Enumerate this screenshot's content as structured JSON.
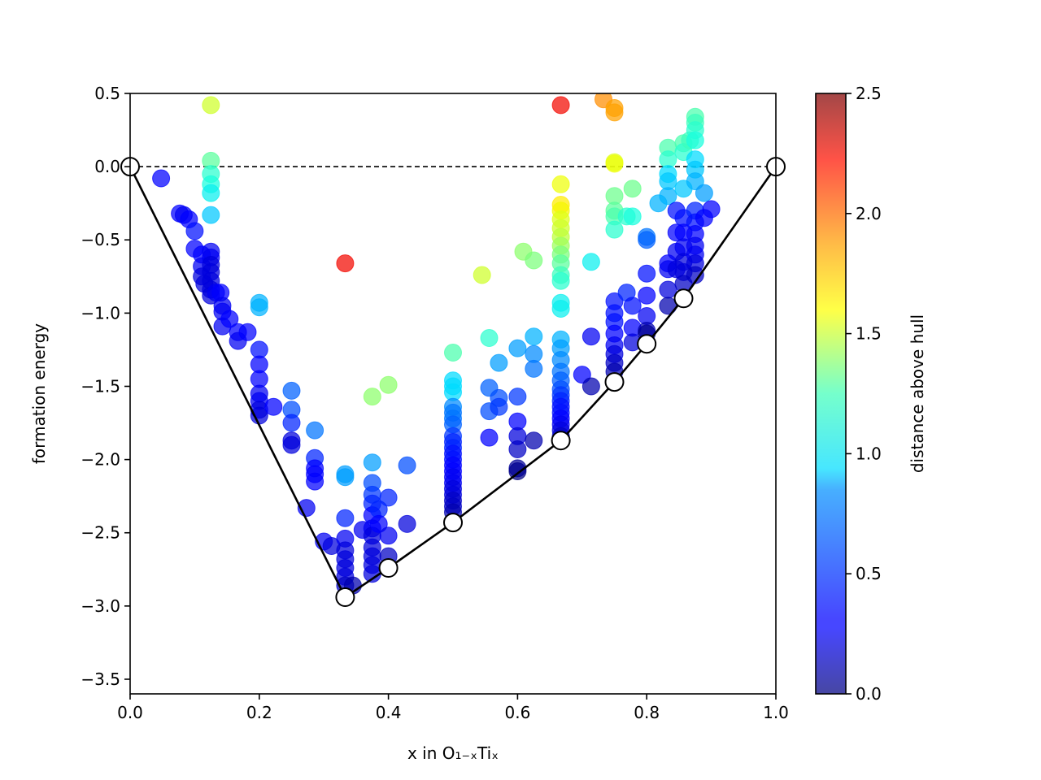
{
  "chart_data": {
    "type": "scatter",
    "xlabel": "x in O₁₋ₓTiₓ",
    "ylabel": "formation energy",
    "xlim": [
      0.0,
      1.0
    ],
    "ylim": [
      -3.6,
      0.5
    ],
    "xticks": [
      "0.0",
      "0.2",
      "0.4",
      "0.6",
      "0.8",
      "1.0"
    ],
    "yticks": [
      "0.5",
      "0.0",
      "−0.5",
      "−1.0",
      "−1.5",
      "−2.0",
      "−2.5",
      "−3.0",
      "−3.5"
    ],
    "colormap": "jet",
    "colorbar": {
      "label": "distance above hull",
      "range": [
        0.0,
        2.5
      ],
      "ticks": [
        "0.0",
        "0.5",
        "1.0",
        "1.5",
        "2.0",
        "2.5"
      ]
    },
    "reference_line": {
      "y": 0.0,
      "style": "dashed"
    },
    "hull": [
      [
        0.0,
        0.0
      ],
      [
        0.333,
        -2.94
      ],
      [
        0.4,
        -2.74
      ],
      [
        0.5,
        -2.43
      ],
      [
        0.667,
        -1.87
      ],
      [
        0.75,
        -1.47
      ],
      [
        0.8,
        -1.21
      ],
      [
        0.857,
        -0.9
      ],
      [
        1.0,
        0.0
      ]
    ],
    "points": [
      [
        0.048,
        -0.08,
        0.3
      ],
      [
        0.077,
        -0.32,
        0.3
      ],
      [
        0.083,
        -0.33,
        0.25
      ],
      [
        0.091,
        -0.36,
        0.3
      ],
      [
        0.1,
        -0.44,
        0.35
      ],
      [
        0.1,
        -0.56,
        0.3
      ],
      [
        0.111,
        -0.6,
        0.3
      ],
      [
        0.111,
        -0.68,
        0.25
      ],
      [
        0.111,
        -0.75,
        0.2
      ],
      [
        0.115,
        -0.8,
        0.2
      ],
      [
        0.125,
        0.42,
        1.5
      ],
      [
        0.125,
        0.04,
        1.15
      ],
      [
        0.125,
        -0.05,
        1.0
      ],
      [
        0.125,
        -0.12,
        0.95
      ],
      [
        0.125,
        -0.18,
        0.9
      ],
      [
        0.125,
        -0.33,
        0.8
      ],
      [
        0.125,
        -0.58,
        0.25
      ],
      [
        0.125,
        -0.62,
        0.25
      ],
      [
        0.125,
        -0.67,
        0.2
      ],
      [
        0.125,
        -0.72,
        0.2
      ],
      [
        0.125,
        -0.78,
        0.2
      ],
      [
        0.125,
        -0.84,
        0.2
      ],
      [
        0.125,
        -0.88,
        0.2
      ],
      [
        0.133,
        -0.86,
        0.25
      ],
      [
        0.14,
        -0.86,
        0.3
      ],
      [
        0.143,
        -0.95,
        0.25
      ],
      [
        0.143,
        -0.99,
        0.25
      ],
      [
        0.143,
        -1.09,
        0.25
      ],
      [
        0.154,
        -1.04,
        0.3
      ],
      [
        0.167,
        -1.13,
        0.3
      ],
      [
        0.167,
        -1.19,
        0.25
      ],
      [
        0.182,
        -1.13,
        0.3
      ],
      [
        0.2,
        -0.93,
        0.75
      ],
      [
        0.2,
        -0.96,
        0.75
      ],
      [
        0.2,
        -1.25,
        0.35
      ],
      [
        0.2,
        -1.35,
        0.3
      ],
      [
        0.2,
        -1.45,
        0.3
      ],
      [
        0.2,
        -1.55,
        0.25
      ],
      [
        0.2,
        -1.6,
        0.25
      ],
      [
        0.2,
        -1.66,
        0.2
      ],
      [
        0.2,
        -1.7,
        0.2
      ],
      [
        0.222,
        -1.64,
        0.3
      ],
      [
        0.25,
        -1.53,
        0.55
      ],
      [
        0.25,
        -1.66,
        0.5
      ],
      [
        0.25,
        -1.75,
        0.4
      ],
      [
        0.25,
        -1.87,
        0.2
      ],
      [
        0.25,
        -1.9,
        0.2
      ],
      [
        0.273,
        -2.33,
        0.25
      ],
      [
        0.286,
        -1.8,
        0.6
      ],
      [
        0.286,
        -1.99,
        0.4
      ],
      [
        0.286,
        -2.06,
        0.3
      ],
      [
        0.286,
        -2.1,
        0.3
      ],
      [
        0.286,
        -2.15,
        0.3
      ],
      [
        0.3,
        -2.56,
        0.25
      ],
      [
        0.312,
        -2.59,
        0.2
      ],
      [
        0.333,
        -0.66,
        2.25
      ],
      [
        0.333,
        -2.1,
        0.7
      ],
      [
        0.333,
        -2.12,
        0.7
      ],
      [
        0.333,
        -2.4,
        0.4
      ],
      [
        0.333,
        -2.54,
        0.25
      ],
      [
        0.333,
        -2.62,
        0.2
      ],
      [
        0.333,
        -2.68,
        0.2
      ],
      [
        0.333,
        -2.74,
        0.2
      ],
      [
        0.333,
        -2.8,
        0.2
      ],
      [
        0.333,
        -2.86,
        0.15
      ],
      [
        0.345,
        -2.86,
        0.1
      ],
      [
        0.36,
        -2.48,
        0.25
      ],
      [
        0.375,
        -1.57,
        1.3
      ],
      [
        0.375,
        -2.02,
        0.7
      ],
      [
        0.375,
        -2.16,
        0.5
      ],
      [
        0.375,
        -2.24,
        0.45
      ],
      [
        0.375,
        -2.3,
        0.4
      ],
      [
        0.375,
        -2.38,
        0.3
      ],
      [
        0.375,
        -2.47,
        0.25
      ],
      [
        0.375,
        -2.52,
        0.2
      ],
      [
        0.375,
        -2.6,
        0.2
      ],
      [
        0.375,
        -2.66,
        0.2
      ],
      [
        0.375,
        -2.72,
        0.2
      ],
      [
        0.375,
        -2.78,
        0.2
      ],
      [
        0.385,
        -2.34,
        0.4
      ],
      [
        0.385,
        -2.44,
        0.3
      ],
      [
        0.4,
        -1.49,
        1.3
      ],
      [
        0.4,
        -2.26,
        0.4
      ],
      [
        0.4,
        -2.52,
        0.25
      ],
      [
        0.4,
        -2.66,
        0.15
      ],
      [
        0.429,
        -2.04,
        0.5
      ],
      [
        0.429,
        -2.44,
        0.2
      ],
      [
        0.5,
        -1.27,
        1.1
      ],
      [
        0.5,
        -1.46,
        0.85
      ],
      [
        0.5,
        -1.5,
        0.85
      ],
      [
        0.5,
        -1.54,
        0.85
      ],
      [
        0.5,
        -1.64,
        0.65
      ],
      [
        0.5,
        -1.68,
        0.6
      ],
      [
        0.5,
        -1.72,
        0.6
      ],
      [
        0.5,
        -1.76,
        0.55
      ],
      [
        0.5,
        -1.84,
        0.45
      ],
      [
        0.5,
        -1.88,
        0.4
      ],
      [
        0.5,
        -1.92,
        0.4
      ],
      [
        0.5,
        -1.96,
        0.35
      ],
      [
        0.5,
        -2.0,
        0.35
      ],
      [
        0.5,
        -2.04,
        0.3
      ],
      [
        0.5,
        -2.08,
        0.3
      ],
      [
        0.5,
        -2.12,
        0.25
      ],
      [
        0.5,
        -2.16,
        0.25
      ],
      [
        0.5,
        -2.2,
        0.2
      ],
      [
        0.5,
        -2.24,
        0.2
      ],
      [
        0.5,
        -2.28,
        0.15
      ],
      [
        0.5,
        -2.32,
        0.15
      ],
      [
        0.5,
        -2.36,
        0.1
      ],
      [
        0.545,
        -0.74,
        1.5
      ],
      [
        0.556,
        -1.17,
        1.0
      ],
      [
        0.556,
        -1.51,
        0.55
      ],
      [
        0.556,
        -1.67,
        0.5
      ],
      [
        0.556,
        -1.85,
        0.3
      ],
      [
        0.571,
        -1.34,
        0.7
      ],
      [
        0.571,
        -1.58,
        0.5
      ],
      [
        0.571,
        -1.64,
        0.45
      ],
      [
        0.6,
        -1.24,
        0.7
      ],
      [
        0.6,
        -1.57,
        0.45
      ],
      [
        0.6,
        -1.74,
        0.3
      ],
      [
        0.6,
        -1.84,
        0.2
      ],
      [
        0.6,
        -1.93,
        0.15
      ],
      [
        0.6,
        -2.08,
        0.0
      ],
      [
        0.6,
        -2.06,
        0.05
      ],
      [
        0.609,
        -0.58,
        1.3
      ],
      [
        0.625,
        -0.64,
        1.25
      ],
      [
        0.625,
        -1.16,
        0.75
      ],
      [
        0.625,
        -1.28,
        0.65
      ],
      [
        0.625,
        -1.38,
        0.6
      ],
      [
        0.625,
        -1.87,
        0.1
      ],
      [
        0.667,
        0.42,
        2.25
      ],
      [
        0.667,
        -0.12,
        1.6
      ],
      [
        0.667,
        -0.26,
        1.65
      ],
      [
        0.667,
        -0.3,
        1.62
      ],
      [
        0.667,
        -0.36,
        1.55
      ],
      [
        0.667,
        -0.42,
        1.5
      ],
      [
        0.667,
        -0.48,
        1.45
      ],
      [
        0.667,
        -0.54,
        1.35
      ],
      [
        0.667,
        -0.6,
        1.25
      ],
      [
        0.667,
        -0.66,
        1.15
      ],
      [
        0.667,
        -0.74,
        1.05
      ],
      [
        0.667,
        -0.78,
        1.0
      ],
      [
        0.667,
        -0.93,
        0.9
      ],
      [
        0.667,
        -0.97,
        0.9
      ],
      [
        0.667,
        -1.18,
        0.75
      ],
      [
        0.667,
        -1.24,
        0.7
      ],
      [
        0.667,
        -1.32,
        0.65
      ],
      [
        0.667,
        -1.4,
        0.6
      ],
      [
        0.667,
        -1.46,
        0.55
      ],
      [
        0.667,
        -1.52,
        0.5
      ],
      [
        0.667,
        -1.56,
        0.45
      ],
      [
        0.667,
        -1.6,
        0.4
      ],
      [
        0.667,
        -1.64,
        0.35
      ],
      [
        0.667,
        -1.68,
        0.35
      ],
      [
        0.667,
        -1.72,
        0.3
      ],
      [
        0.667,
        -1.76,
        0.25
      ],
      [
        0.667,
        -1.8,
        0.2
      ],
      [
        0.667,
        -1.84,
        0.15
      ],
      [
        0.7,
        -1.42,
        0.3
      ],
      [
        0.714,
        -0.65,
        0.9
      ],
      [
        0.714,
        -1.16,
        0.25
      ],
      [
        0.714,
        -1.5,
        0.1
      ],
      [
        0.733,
        0.46,
        1.9
      ],
      [
        0.75,
        0.4,
        1.85
      ],
      [
        0.75,
        0.37,
        1.85
      ],
      [
        0.75,
        0.03,
        1.55
      ],
      [
        0.75,
        0.02,
        1.6
      ],
      [
        0.75,
        -0.2,
        1.2
      ],
      [
        0.75,
        -0.3,
        1.15
      ],
      [
        0.75,
        -0.34,
        1.1
      ],
      [
        0.75,
        -0.43,
        1.0
      ],
      [
        0.75,
        -0.92,
        0.35
      ],
      [
        0.75,
        -1.0,
        0.35
      ],
      [
        0.75,
        -1.06,
        0.35
      ],
      [
        0.75,
        -1.14,
        0.3
      ],
      [
        0.75,
        -1.22,
        0.25
      ],
      [
        0.75,
        -1.28,
        0.2
      ],
      [
        0.75,
        -1.34,
        0.15
      ],
      [
        0.75,
        -1.4,
        0.1
      ],
      [
        0.769,
        -0.86,
        0.4
      ],
      [
        0.769,
        -0.34,
        1.0
      ],
      [
        0.778,
        -0.15,
        1.2
      ],
      [
        0.778,
        -0.34,
        0.95
      ],
      [
        0.778,
        -0.95,
        0.35
      ],
      [
        0.778,
        -1.1,
        0.3
      ],
      [
        0.778,
        -1.2,
        0.2
      ],
      [
        0.8,
        -0.48,
        0.6
      ],
      [
        0.8,
        -0.5,
        0.55
      ],
      [
        0.8,
        -0.73,
        0.35
      ],
      [
        0.8,
        -0.88,
        0.3
      ],
      [
        0.8,
        -1.02,
        0.25
      ],
      [
        0.8,
        -1.12,
        0.1
      ],
      [
        0.8,
        -1.14,
        0.05
      ],
      [
        0.818,
        -0.25,
        0.75
      ],
      [
        0.833,
        0.13,
        1.1
      ],
      [
        0.833,
        0.05,
        1.0
      ],
      [
        0.833,
        -0.05,
        0.85
      ],
      [
        0.833,
        -0.1,
        0.8
      ],
      [
        0.833,
        -0.2,
        0.75
      ],
      [
        0.833,
        -0.66,
        0.3
      ],
      [
        0.833,
        -0.7,
        0.25
      ],
      [
        0.833,
        -0.84,
        0.2
      ],
      [
        0.833,
        -0.95,
        0.1
      ],
      [
        0.846,
        -0.3,
        0.35
      ],
      [
        0.846,
        -0.45,
        0.3
      ],
      [
        0.846,
        -0.58,
        0.25
      ],
      [
        0.846,
        -0.7,
        0.2
      ],
      [
        0.857,
        0.16,
        1.1
      ],
      [
        0.857,
        0.1,
        1.0
      ],
      [
        0.857,
        -0.15,
        0.8
      ],
      [
        0.857,
        -0.35,
        0.35
      ],
      [
        0.857,
        -0.45,
        0.3
      ],
      [
        0.857,
        -0.55,
        0.25
      ],
      [
        0.857,
        -0.65,
        0.2
      ],
      [
        0.857,
        -0.72,
        0.2
      ],
      [
        0.857,
        -0.8,
        0.15
      ],
      [
        0.867,
        0.18,
        1.05
      ],
      [
        0.875,
        0.34,
        1.1
      ],
      [
        0.875,
        0.3,
        1.05
      ],
      [
        0.875,
        0.25,
        1.0
      ],
      [
        0.875,
        0.18,
        0.95
      ],
      [
        0.875,
        0.05,
        0.85
      ],
      [
        0.875,
        -0.02,
        0.8
      ],
      [
        0.875,
        -0.1,
        0.75
      ],
      [
        0.875,
        -0.3,
        0.4
      ],
      [
        0.875,
        -0.38,
        0.35
      ],
      [
        0.875,
        -0.46,
        0.3
      ],
      [
        0.875,
        -0.54,
        0.25
      ],
      [
        0.875,
        -0.6,
        0.25
      ],
      [
        0.875,
        -0.66,
        0.2
      ],
      [
        0.875,
        -0.74,
        0.15
      ],
      [
        0.889,
        -0.18,
        0.7
      ],
      [
        0.889,
        -0.35,
        0.3
      ],
      [
        0.9,
        -0.29,
        0.3
      ]
    ]
  }
}
